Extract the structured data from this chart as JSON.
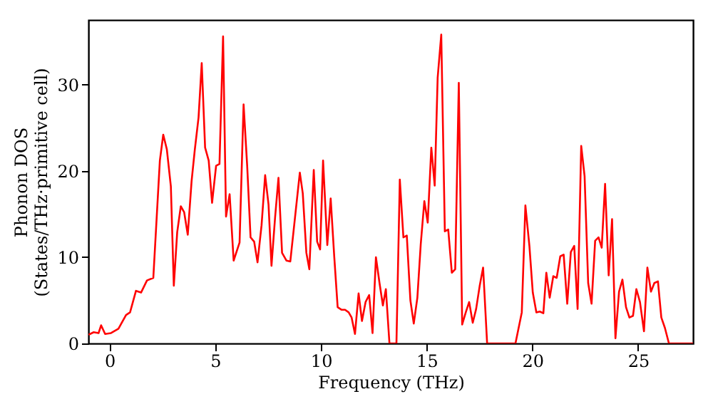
{
  "chart_data": {
    "type": "line",
    "xlabel": "Frequency (THz)",
    "ylabel": "Phonon DOS\n(States/THz·primitive cell)",
    "xlim": [
      -1,
      27.6
    ],
    "ylim": [
      0,
      37.5
    ],
    "xticks": [
      0,
      5,
      10,
      15,
      20,
      25
    ],
    "yticks": [
      0,
      10,
      20,
      30
    ],
    "grid": false,
    "marker": "none",
    "line_style": "solid",
    "series": [
      {
        "color": "#ff0000",
        "x": [
          -0.99,
          -0.75,
          -0.52,
          -0.4,
          -0.21,
          0.07,
          0.42,
          0.78,
          0.97,
          1.25,
          1.49,
          1.77,
          2.07,
          2.38,
          2.54,
          2.71,
          2.9,
          3.04,
          3.2,
          3.37,
          3.53,
          3.7,
          3.88,
          4.03,
          4.21,
          4.36,
          4.52,
          4.69,
          4.85,
          5.04,
          5.2,
          5.37,
          5.51,
          5.68,
          5.87,
          6.15,
          6.34,
          6.51,
          6.67,
          6.84,
          7.0,
          7.19,
          7.36,
          7.52,
          7.66,
          7.83,
          7.99,
          8.16,
          8.37,
          8.55,
          9.0,
          9.14,
          9.31,
          9.45,
          9.66,
          9.82,
          9.96,
          10.1,
          10.3,
          10.46,
          10.63,
          10.79,
          10.98,
          11.14,
          11.31,
          11.45,
          11.61,
          11.78,
          11.94,
          12.11,
          12.28,
          12.44,
          12.6,
          12.77,
          12.93,
          13.07,
          13.24,
          13.57,
          13.73,
          13.9,
          14.06,
          14.23,
          14.39,
          14.56,
          14.72,
          14.89,
          15.05,
          15.22,
          15.38,
          15.52,
          15.69,
          15.86,
          16.02,
          16.19,
          16.35,
          16.52,
          16.68,
          16.85,
          17.01,
          17.18,
          17.34,
          17.51,
          17.67,
          17.86,
          19.2,
          19.5,
          19.67,
          19.86,
          20.02,
          20.19,
          20.35,
          20.52,
          20.66,
          20.82,
          20.99,
          21.15,
          21.32,
          21.48,
          21.65,
          21.82,
          21.98,
          22.14,
          22.31,
          22.47,
          22.64,
          22.8,
          22.97,
          23.13,
          23.28,
          23.44,
          23.61,
          23.77,
          23.93,
          24.1,
          24.26,
          24.43,
          24.59,
          24.76,
          24.92,
          25.09,
          25.28,
          25.44,
          25.61,
          25.77,
          25.94,
          26.1,
          26.27,
          26.46,
          27.6
        ],
        "values": [
          1.0,
          1.3,
          1.2,
          2.1,
          1.1,
          1.2,
          1.7,
          3.3,
          3.6,
          6.1,
          5.9,
          7.3,
          7.6,
          21.2,
          24.2,
          22.5,
          18.2,
          6.7,
          12.9,
          15.9,
          15.2,
          12.6,
          18.8,
          22.4,
          26.2,
          32.5,
          22.7,
          21.2,
          16.3,
          20.6,
          20.8,
          35.6,
          14.7,
          17.3,
          9.6,
          11.7,
          27.7,
          20.6,
          12.3,
          11.8,
          9.4,
          13.7,
          19.5,
          16.1,
          9.0,
          14.6,
          19.2,
          10.5,
          9.6,
          9.5,
          19.8,
          17.4,
          10.5,
          8.6,
          20.1,
          11.8,
          10.9,
          21.2,
          11.4,
          16.8,
          10.0,
          4.2,
          3.9,
          3.9,
          3.6,
          3.0,
          1.1,
          5.8,
          2.6,
          4.8,
          5.6,
          1.2,
          10.0,
          7.0,
          4.4,
          6.3,
          0,
          0,
          19.0,
          12.3,
          12.5,
          5.0,
          2.3,
          5.3,
          11.5,
          16.5,
          14.0,
          22.7,
          18.3,
          30.8,
          35.8,
          13.0,
          13.2,
          8.2,
          8.6,
          30.2,
          2.2,
          3.6,
          4.8,
          2.4,
          4.0,
          6.7,
          8.8,
          0,
          0,
          3.6,
          16.0,
          11.3,
          5.9,
          3.6,
          3.7,
          3.5,
          8.2,
          5.3,
          7.8,
          7.6,
          10.1,
          10.3,
          4.6,
          10.6,
          11.3,
          4.0,
          22.9,
          19.4,
          7.0,
          4.6,
          11.9,
          12.3,
          11.1,
          18.5,
          7.9,
          14.4,
          0.6,
          6.0,
          7.4,
          4.2,
          3.0,
          3.2,
          6.3,
          4.8,
          1.4,
          8.8,
          6.0,
          7.0,
          7.2,
          3.0,
          1.8,
          0,
          0
        ]
      }
    ]
  }
}
